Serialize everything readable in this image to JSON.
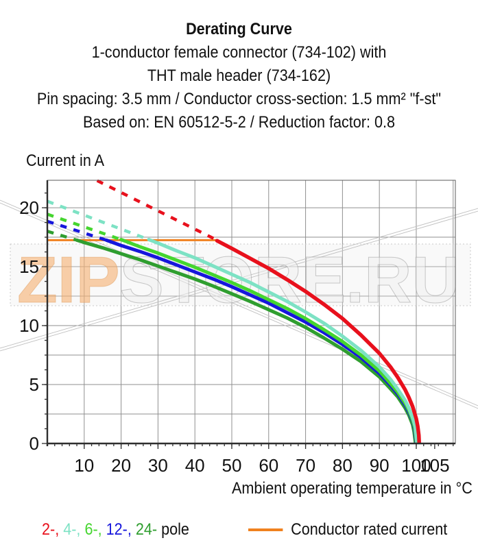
{
  "title": {
    "line1": "Derating Curve",
    "line2": "1-conductor female connector (734-102) with",
    "line3": "THT male header (734-162)",
    "line4": "Pin spacing: 3.5 mm / Conductor cross-section: 1.5 mm² \"f-st\"",
    "line5": "Based on: EN 60512-5-2 / Reduction factor: 0.8"
  },
  "watermark": {
    "left": "ZIP",
    "right": "STORE.RU",
    "left_color": "rgba(245,170,100,0.55)",
    "right_color": "rgba(240,240,240,0.5)"
  },
  "chart_data": {
    "type": "line",
    "title": "Derating Curve",
    "xlabel": "Ambient operating temperature in °C",
    "ylabel": "Current in A",
    "xlim": [
      0,
      110.6
    ],
    "ylim": [
      0,
      22.33
    ],
    "grid": true,
    "x_grid_step": 10,
    "y_grid_step": 2.5,
    "x_minor_tick_step": 2,
    "y_minor_tick_step": 1.25,
    "x_tick_labels": [
      10,
      20,
      30,
      40,
      50,
      60,
      70,
      80,
      90,
      100,
      105
    ],
    "y_tick_labels": [
      0,
      5,
      10,
      15,
      20
    ],
    "rated_current_line": {
      "y": 17.25,
      "x_from": 0,
      "x_to": 46,
      "color": "#f0811f",
      "label": "Conductor rated current"
    },
    "series": [
      {
        "name": "2-pole",
        "color": "#e8101c",
        "dashed": [
          [
            13.5,
            22.3
          ],
          [
            46,
            17.25
          ]
        ],
        "solid": [
          [
            46,
            17.2
          ],
          [
            50,
            16.55
          ],
          [
            55,
            15.7
          ],
          [
            60,
            14.85
          ],
          [
            65,
            13.9
          ],
          [
            70,
            12.9
          ],
          [
            75,
            11.8
          ],
          [
            80,
            10.6
          ],
          [
            85,
            9.2
          ],
          [
            90,
            7.65
          ],
          [
            93,
            6.5
          ],
          [
            95,
            5.6
          ],
          [
            97,
            4.55
          ],
          [
            98,
            3.9
          ],
          [
            99,
            3.15
          ],
          [
            100,
            2.1
          ],
          [
            100.4,
            1.45
          ],
          [
            100.7,
            0.7
          ],
          [
            100.8,
            0
          ]
        ]
      },
      {
        "name": "4-pole",
        "color": "#7de2c4",
        "dashed": [
          [
            0,
            20.55
          ],
          [
            27.5,
            17.3
          ]
        ],
        "solid": [
          [
            27.5,
            17.3
          ],
          [
            30,
            17.0
          ],
          [
            35,
            16.35
          ],
          [
            40,
            15.75
          ],
          [
            45,
            15.05
          ],
          [
            50,
            14.35
          ],
          [
            55,
            13.65
          ],
          [
            60,
            12.85
          ],
          [
            65,
            12.05
          ],
          [
            70,
            11.15
          ],
          [
            75,
            10.2
          ],
          [
            80,
            9.1
          ],
          [
            85,
            7.9
          ],
          [
            90,
            6.5
          ],
          [
            93,
            5.45
          ],
          [
            95,
            4.6
          ],
          [
            97,
            3.65
          ],
          [
            98,
            3.0
          ],
          [
            99,
            2.2
          ],
          [
            99.7,
            1.45
          ],
          [
            100.2,
            0
          ]
        ]
      },
      {
        "name": "6-pole",
        "color": "#45d52f",
        "dashed": [
          [
            0,
            19.45
          ],
          [
            20,
            17.3
          ]
        ],
        "solid": [
          [
            20,
            17.3
          ],
          [
            25,
            16.7
          ],
          [
            30,
            16.15
          ],
          [
            35,
            15.55
          ],
          [
            40,
            14.95
          ],
          [
            45,
            14.3
          ],
          [
            50,
            13.65
          ],
          [
            55,
            12.95
          ],
          [
            60,
            12.2
          ],
          [
            65,
            11.45
          ],
          [
            70,
            10.6
          ],
          [
            75,
            9.65
          ],
          [
            80,
            8.65
          ],
          [
            85,
            7.5
          ],
          [
            90,
            6.15
          ],
          [
            93,
            5.1
          ],
          [
            95,
            4.35
          ],
          [
            97,
            3.4
          ],
          [
            98,
            2.8
          ],
          [
            99,
            2.0
          ],
          [
            99.6,
            1.35
          ],
          [
            100.1,
            0
          ]
        ]
      },
      {
        "name": "12-pole",
        "color": "#1616dc",
        "dashed": [
          [
            0,
            18.85
          ],
          [
            16,
            17.25
          ]
        ],
        "solid": [
          [
            16,
            17.25
          ],
          [
            20,
            16.8
          ],
          [
            25,
            16.3
          ],
          [
            30,
            15.75
          ],
          [
            35,
            15.15
          ],
          [
            40,
            14.55
          ],
          [
            45,
            13.95
          ],
          [
            50,
            13.3
          ],
          [
            55,
            12.6
          ],
          [
            60,
            11.9
          ],
          [
            65,
            11.1
          ],
          [
            70,
            10.3
          ],
          [
            75,
            9.4
          ],
          [
            80,
            8.4
          ],
          [
            85,
            7.3
          ],
          [
            90,
            5.95
          ],
          [
            93,
            4.95
          ],
          [
            95,
            4.2
          ],
          [
            97,
            3.25
          ],
          [
            98,
            2.65
          ],
          [
            99,
            1.9
          ],
          [
            99.5,
            1.3
          ],
          [
            100,
            0
          ]
        ]
      },
      {
        "name": "24-pole",
        "color": "#2f9e2f",
        "dashed": [
          [
            0,
            18.0
          ],
          [
            8,
            17.25
          ]
        ],
        "solid": [
          [
            8,
            17.25
          ],
          [
            10,
            17.05
          ],
          [
            15,
            16.6
          ],
          [
            20,
            16.1
          ],
          [
            25,
            15.6
          ],
          [
            30,
            15.05
          ],
          [
            35,
            14.5
          ],
          [
            40,
            13.95
          ],
          [
            45,
            13.35
          ],
          [
            50,
            12.7
          ],
          [
            55,
            12.05
          ],
          [
            60,
            11.35
          ],
          [
            65,
            10.65
          ],
          [
            70,
            9.85
          ],
          [
            75,
            8.95
          ],
          [
            80,
            8.0
          ],
          [
            85,
            6.95
          ],
          [
            90,
            5.65
          ],
          [
            93,
            4.65
          ],
          [
            95,
            3.95
          ],
          [
            97,
            3.0
          ],
          [
            98,
            2.4
          ],
          [
            99,
            1.6
          ],
          [
            99.4,
            1.0
          ],
          [
            99.8,
            0
          ]
        ]
      }
    ],
    "legend_position": "bottom"
  },
  "legend": {
    "poles": [
      {
        "label": "2-",
        "color": "#e8101c"
      },
      {
        "label": "4-",
        "color": "#7de2c4"
      },
      {
        "label": "6-",
        "color": "#45d52f"
      },
      {
        "label": "12-",
        "color": "#1616dc"
      },
      {
        "label": "24-",
        "color": "#2f9e2f"
      }
    ],
    "separator": ", ",
    "pole_suffix": " pole",
    "rated_label": "Conductor rated current",
    "rated_color": "#f0811f"
  }
}
